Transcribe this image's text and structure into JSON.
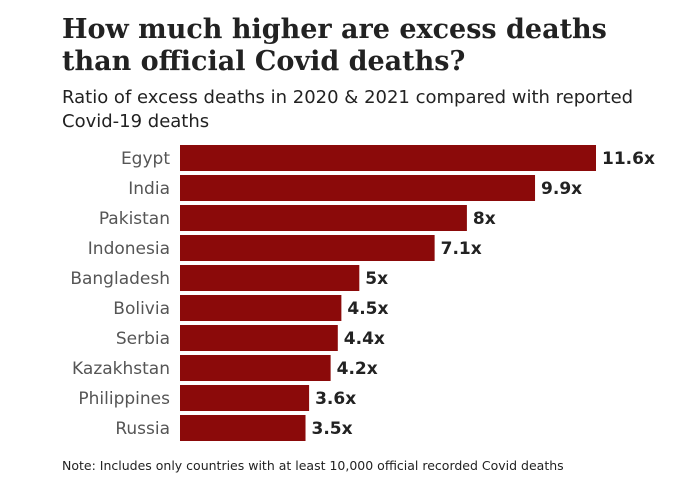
{
  "chart_data": {
    "type": "bar",
    "orientation": "horizontal",
    "title": "How much higher are excess deaths than official Covid deaths?",
    "subtitle": "Ratio of excess deaths in 2020 & 2021 compared with reported Covid-19 deaths",
    "categories": [
      "Egypt",
      "India",
      "Pakistan",
      "Indonesia",
      "Bangladesh",
      "Bolivia",
      "Serbia",
      "Kazakhstan",
      "Philippines",
      "Russia"
    ],
    "values": [
      11.6,
      9.9,
      8,
      7.1,
      5,
      4.5,
      4.4,
      4.2,
      3.6,
      3.5
    ],
    "value_labels": [
      "11.6x",
      "9.9x",
      "8x",
      "7.1x",
      "5x",
      "4.5x",
      "4.4x",
      "4.2x",
      "3.6x",
      "3.5x"
    ],
    "xlim": [
      0,
      11.6
    ],
    "grid": false,
    "legend": "none",
    "bar_color": "#8b0a0a",
    "note": "Note: Includes only countries with at least 10,000 official recorded Covid deaths"
  }
}
